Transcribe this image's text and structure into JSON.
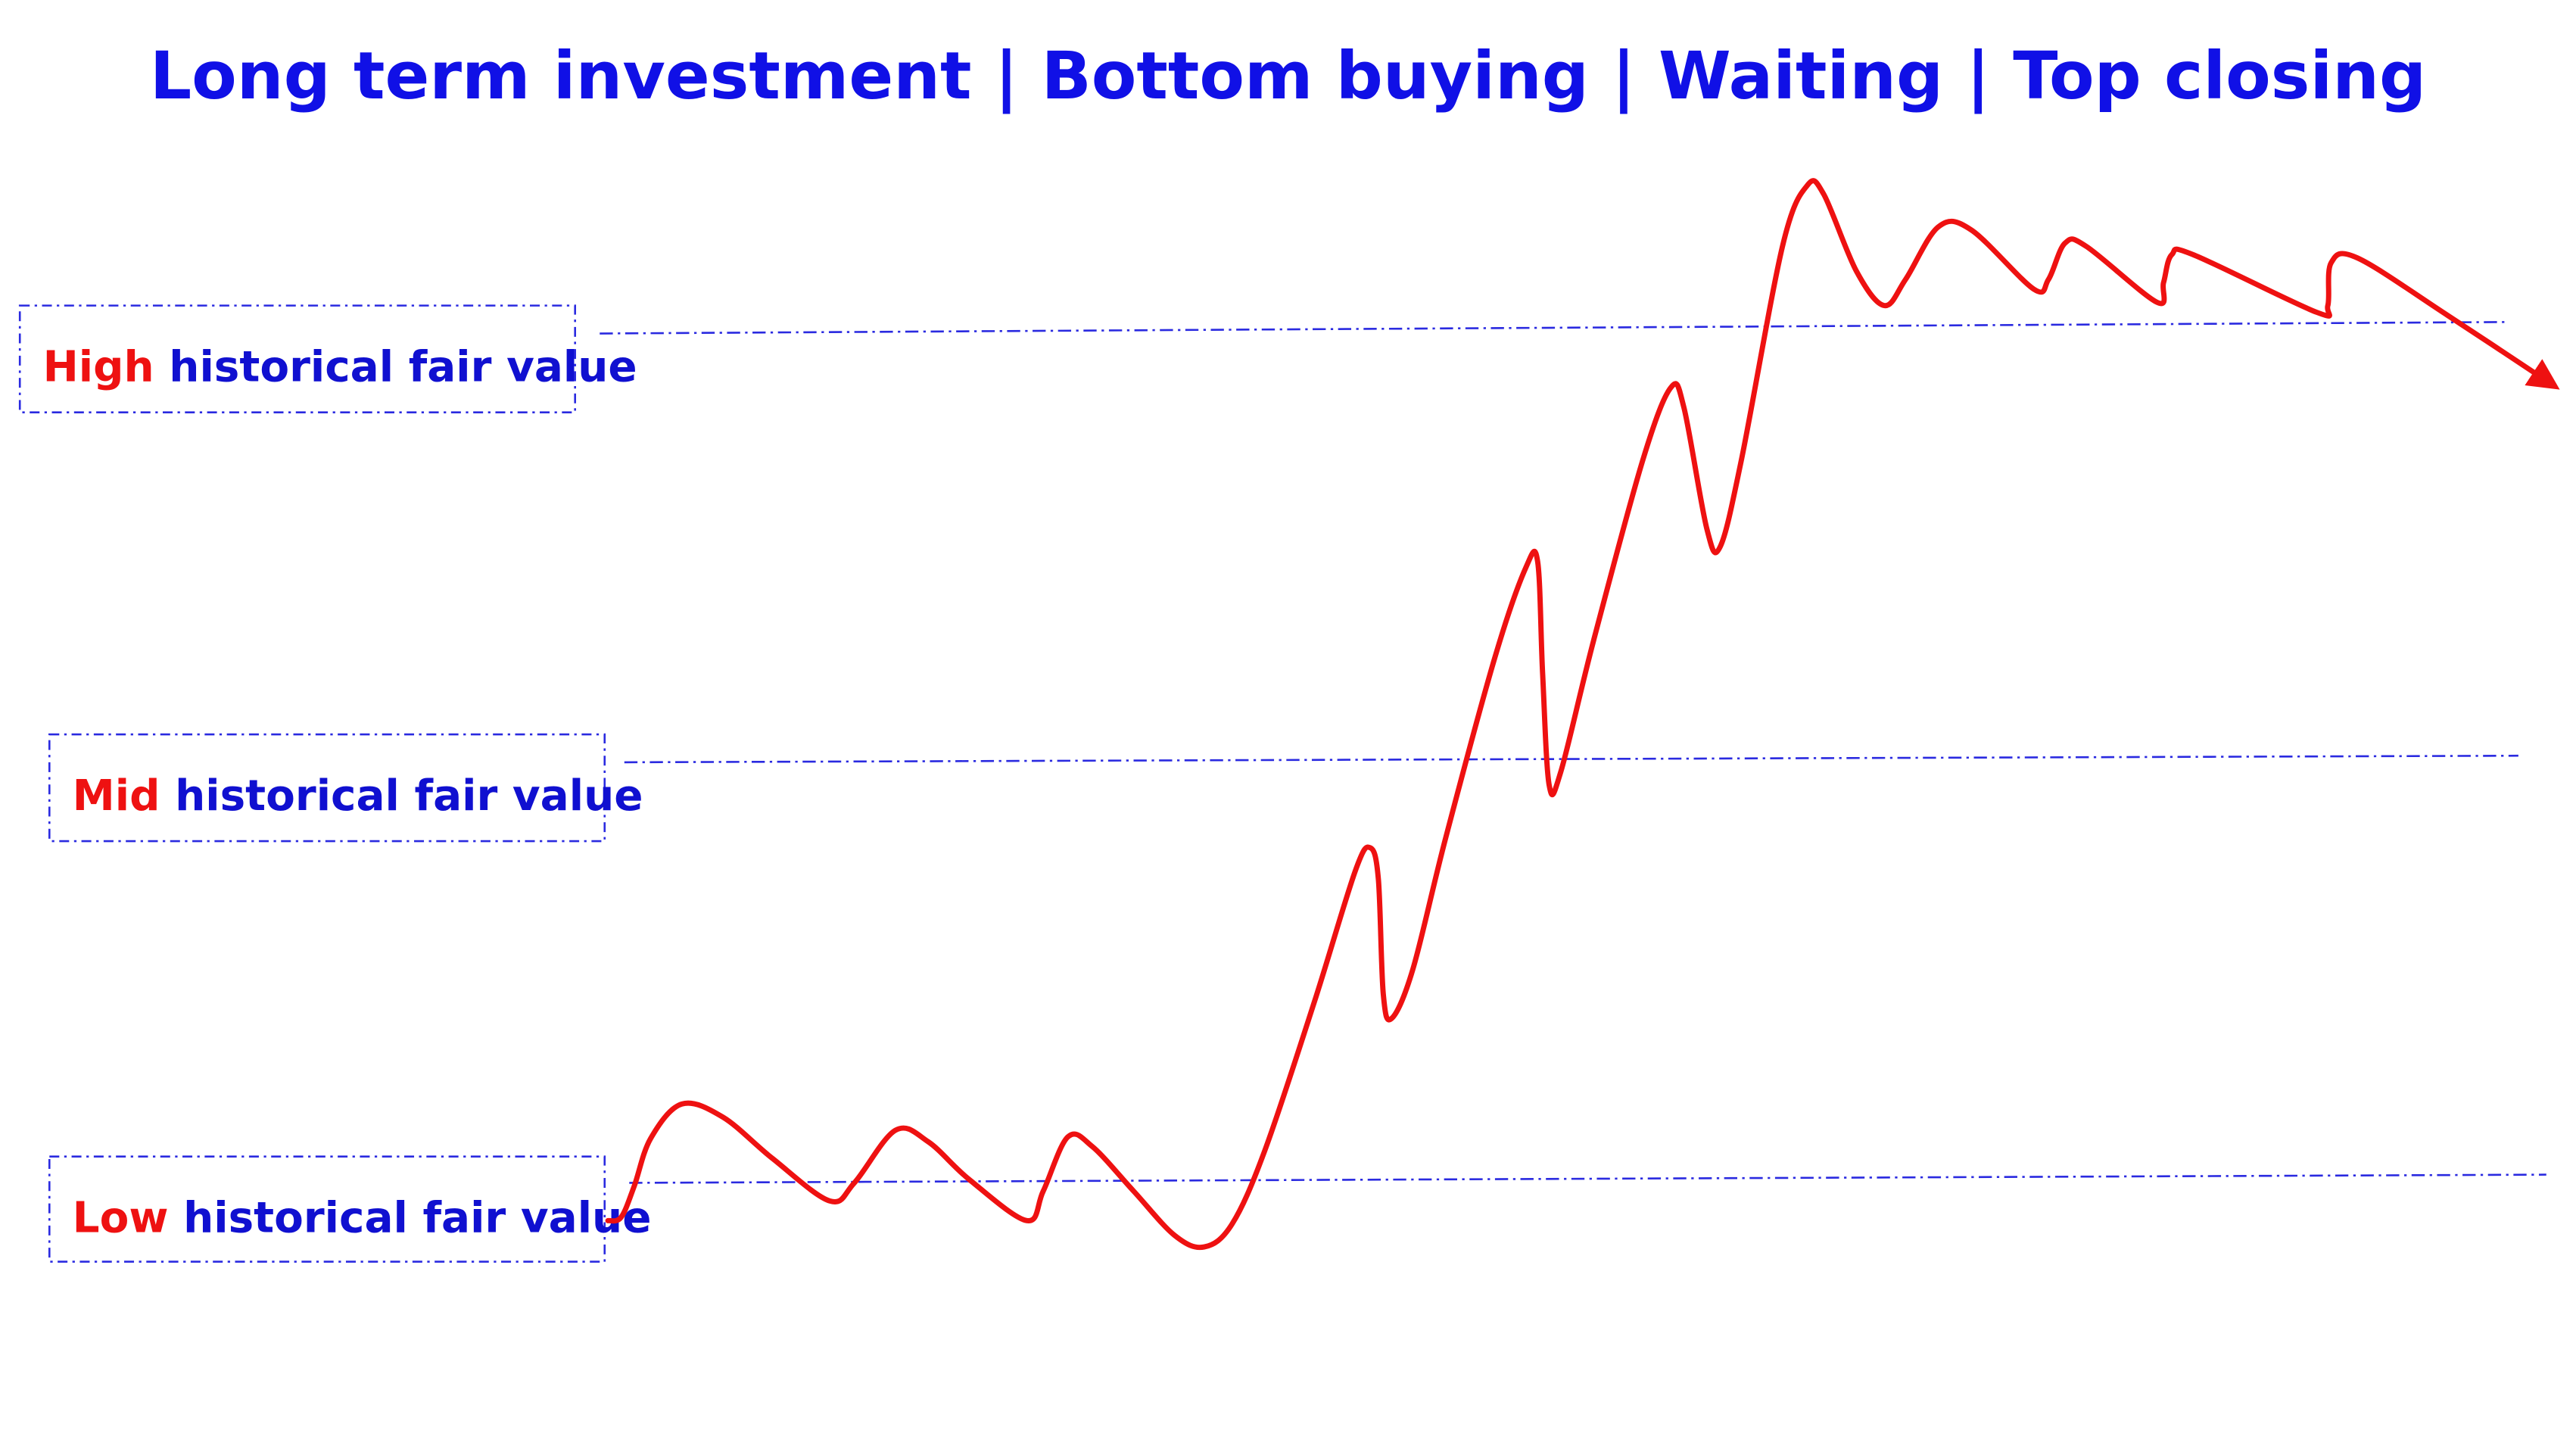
{
  "title": "Long term investment | Bottom buying | Waiting | Top closing",
  "levels": [
    {
      "keyword": "High",
      "text": "historical fair value"
    },
    {
      "keyword": "Mid",
      "text": "historical fair value"
    },
    {
      "keyword": "Low",
      "text": "historical fair value"
    }
  ]
}
